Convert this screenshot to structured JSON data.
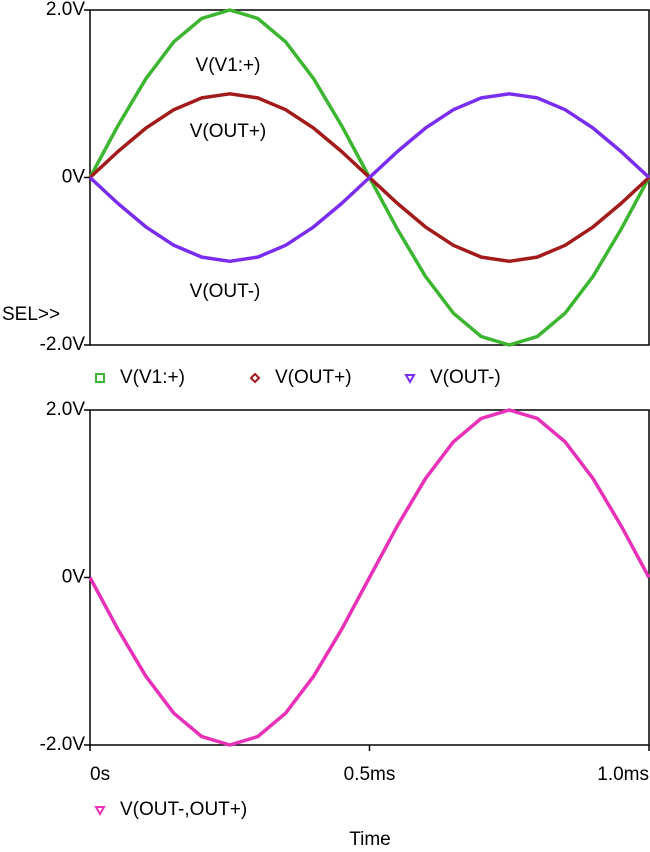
{
  "chart_data": [
    {
      "type": "line",
      "x": [
        0,
        0.05,
        0.1,
        0.15,
        0.2,
        0.25,
        0.3,
        0.35,
        0.4,
        0.45,
        0.5,
        0.55,
        0.6,
        0.65,
        0.7,
        0.75,
        0.8,
        0.85,
        0.9,
        0.95,
        1.0
      ],
      "series": [
        {
          "name": "V(V1:+)",
          "color": "#3cb531",
          "marker": "square",
          "values": [
            0,
            0.62,
            1.18,
            1.62,
            1.9,
            2,
            1.9,
            1.62,
            1.18,
            0.62,
            0,
            -0.62,
            -1.18,
            -1.62,
            -1.9,
            -2,
            -1.9,
            -1.62,
            -1.18,
            -0.62,
            0
          ]
        },
        {
          "name": "V(OUT+)",
          "color": "#a31a1a",
          "marker": "diamond",
          "values": [
            0,
            0.31,
            0.59,
            0.81,
            0.95,
            1,
            0.95,
            0.81,
            0.59,
            0.31,
            0,
            -0.31,
            -0.59,
            -0.81,
            -0.95,
            -1,
            -0.95,
            -0.81,
            -0.59,
            -0.31,
            0
          ]
        },
        {
          "name": "V(OUT-)",
          "color": "#7a2cf0",
          "marker": "triangle",
          "values": [
            0,
            -0.31,
            -0.59,
            -0.81,
            -0.95,
            -1,
            -0.95,
            -0.81,
            -0.59,
            -0.31,
            0,
            0.31,
            0.59,
            0.81,
            0.95,
            1,
            0.95,
            0.81,
            0.59,
            0.31,
            0
          ]
        }
      ],
      "xlim": [
        0,
        1.0
      ],
      "ylim": [
        -2,
        2
      ],
      "yticks": [
        {
          "value": 2,
          "label": "2.0V"
        },
        {
          "value": 0,
          "label": "0V"
        },
        {
          "value": -2,
          "label": "-2.0V"
        }
      ],
      "annotations": [
        "V(V1:+)",
        "V(OUT+)",
        "V(OUT-)",
        "SEL>>"
      ]
    },
    {
      "type": "line",
      "x": [
        0,
        0.05,
        0.1,
        0.15,
        0.2,
        0.25,
        0.3,
        0.35,
        0.4,
        0.45,
        0.5,
        0.55,
        0.6,
        0.65,
        0.7,
        0.75,
        0.8,
        0.85,
        0.9,
        0.95,
        1.0
      ],
      "series": [
        {
          "name": "V(OUT-,OUT+)",
          "color": "#e830b8",
          "marker": "triangle",
          "values": [
            0,
            -0.62,
            -1.18,
            -1.62,
            -1.9,
            -2,
            -1.9,
            -1.62,
            -1.18,
            -0.62,
            0,
            0.62,
            1.18,
            1.62,
            1.9,
            2,
            1.9,
            1.62,
            1.18,
            0.62,
            0
          ]
        }
      ],
      "xlim": [
        0,
        1.0
      ],
      "ylim": [
        -2,
        2
      ],
      "yticks": [
        {
          "value": 2,
          "label": "2.0V"
        },
        {
          "value": 0,
          "label": "0V"
        },
        {
          "value": -2,
          "label": "-2.0V"
        }
      ],
      "xticks": [
        {
          "value": 0,
          "label": "0s"
        },
        {
          "value": 0.5,
          "label": "0.5ms"
        },
        {
          "value": 1.0,
          "label": "1.0ms"
        }
      ],
      "xlabel": "Time"
    }
  ]
}
